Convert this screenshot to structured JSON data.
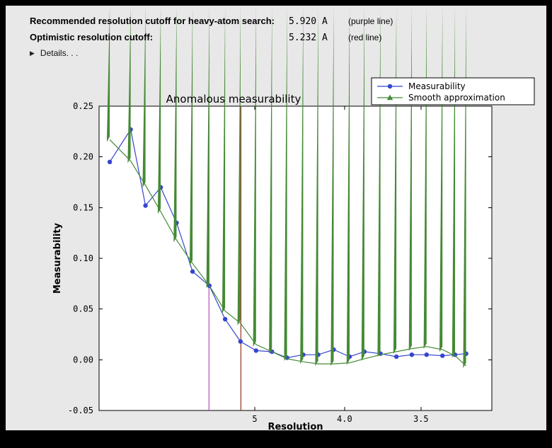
{
  "header": {
    "rows": [
      {
        "label": "Recommended resolution cutoff for heavy-atom search:",
        "value": "5.920 A",
        "note": "(purple line)"
      },
      {
        "label": "Optimistic resolution cutoff:",
        "value": "5.232 A",
        "note": "(red line)"
      }
    ],
    "details_label": "Details. . ."
  },
  "colors": {
    "panel_background": "#e8e8e8",
    "plot_background": "#ffffff",
    "measurability_blue": "#3545cf",
    "smooth_green": "#458a35",
    "purple_cutoff": "#b750b7",
    "red_cutoff": "#993524"
  },
  "chart_data": {
    "type": "line",
    "title": "Anomalous measurability",
    "xlabel": "Resolution",
    "ylabel": "Measurability",
    "x_axis": {
      "scale": "inverse_d_squared",
      "unit": "Angstrom",
      "range_inv_d2": [
        0.001,
        0.0994
      ],
      "ticks": [
        {
          "label": "5",
          "inv_d2": 0.04
        },
        {
          "label": "4.0",
          "inv_d2": 0.0625
        },
        {
          "label": "3.5",
          "inv_d2": 0.08163
        }
      ]
    },
    "y_axis": {
      "range": [
        -0.05,
        0.25
      ],
      "tick_step": 0.05,
      "tick_labels": [
        "-0.05",
        "0.00",
        "0.05",
        "0.10",
        "0.15",
        "0.20",
        "0.25"
      ]
    },
    "resolution_A": [
      16.5,
      10.6,
      8.9,
      7.8,
      7.0,
      6.4,
      5.91,
      5.54,
      5.24,
      4.98,
      4.75,
      4.56,
      4.38,
      4.23,
      4.09,
      3.96,
      3.85,
      3.74,
      3.64,
      3.55,
      3.47,
      3.39,
      3.33,
      3.28
    ],
    "series": [
      {
        "name": "Measurability",
        "color": "#3545cf",
        "marker": "circle",
        "values": [
          0.195,
          0.227,
          0.152,
          0.17,
          0.135,
          0.087,
          0.073,
          0.04,
          0.018,
          0.009,
          0.008,
          0.002,
          0.005,
          0.005,
          0.01,
          0.003,
          0.008,
          0.006,
          0.003,
          0.005,
          0.005,
          0.004,
          0.005,
          0.006
        ]
      },
      {
        "name": "Smooth approximation",
        "color": "#458a35",
        "marker": "triangle",
        "values": [
          0.217,
          0.196,
          0.172,
          0.146,
          0.118,
          0.095,
          0.073,
          0.048,
          0.036,
          0.015,
          0.008,
          0.001,
          -0.002,
          -0.004,
          -0.004,
          -0.003,
          0.001,
          0.005,
          0.008,
          0.011,
          0.013,
          0.01,
          0.004,
          -0.006
        ]
      }
    ],
    "vlines": [
      {
        "name": "purple-cutoff-line",
        "resolution_A": 5.92,
        "color": "#b750b7"
      },
      {
        "name": "red-cutoff-line",
        "resolution_A": 5.232,
        "color": "#993524"
      }
    ],
    "legend": {
      "position": "upper right",
      "entries": [
        "Measurability",
        "Smooth approximation"
      ]
    }
  }
}
